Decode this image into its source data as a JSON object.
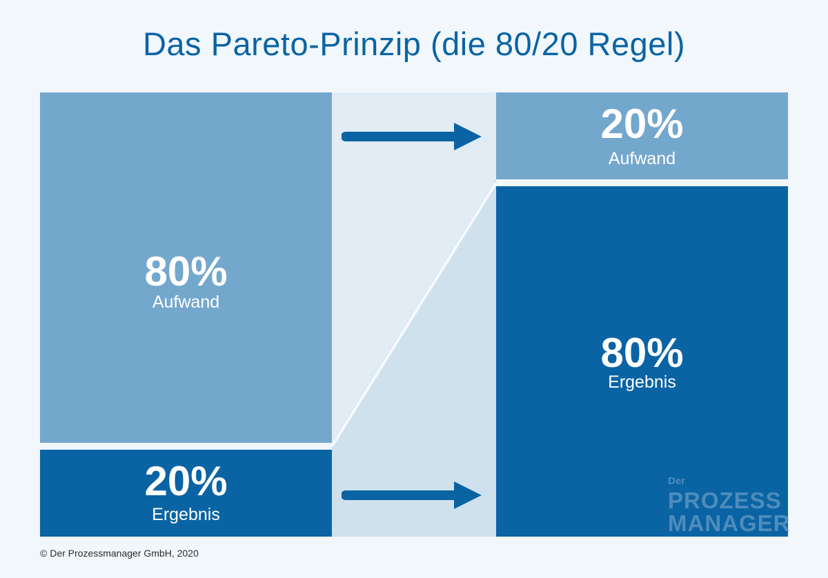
{
  "title": "Das Pareto-Prinzip (die 80/20 Regel)",
  "blocks": {
    "left_top": {
      "percent": "80%",
      "label": "Aufwand"
    },
    "left_bottom": {
      "percent": "20%",
      "label": "Ergebnis"
    },
    "right_top": {
      "percent": "20%",
      "label": "Aufwand"
    },
    "right_bottom": {
      "percent": "80%",
      "label": "Ergebnis"
    }
  },
  "logo": {
    "line1": "Der",
    "line2": "PROZESS",
    "line3": "MANAGER"
  },
  "footer": "© Der Prozessmanager GmbH, 2020",
  "colors": {
    "background": "#f1f7fb",
    "light_blue": "#74a7cc",
    "dark_blue": "#0a64a4",
    "connector_top": "#e1ecf4",
    "connector_bottom": "#cfe1ed"
  }
}
